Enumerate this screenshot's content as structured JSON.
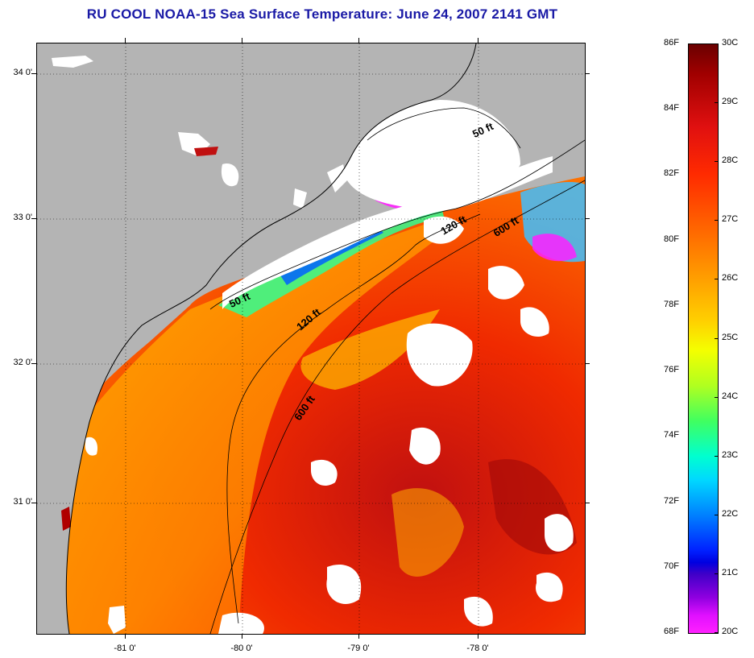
{
  "title": "RU COOL  NOAA-15  Sea Surface Temperature:  June 24, 2007 2141 GMT",
  "map": {
    "lat_labels": [
      "34 0'",
      "33 0'",
      "32 0'",
      "31 0'"
    ],
    "lon_labels": [
      "-81 0'",
      "-80 0'",
      "-79 0'",
      "-78 0'"
    ],
    "contour_labels": [
      "50 ft",
      "120 ft",
      "600 ft",
      "50 ft",
      "120 ft",
      "600 ft"
    ],
    "colors": {
      "land": "#b4b4b4",
      "cloud": "#ffffff",
      "contour": "#000000"
    }
  },
  "colorbar": {
    "fahrenheit": [
      "86F",
      "84F",
      "82F",
      "80F",
      "78F",
      "76F",
      "74F",
      "72F",
      "70F",
      "68F"
    ],
    "celsius": [
      "30C",
      "29C",
      "28C",
      "27C",
      "26C",
      "25C",
      "24C",
      "23C",
      "22C",
      "21C",
      "20C"
    ],
    "range_f": [
      68,
      86
    ],
    "range_c": [
      20,
      30
    ]
  }
}
